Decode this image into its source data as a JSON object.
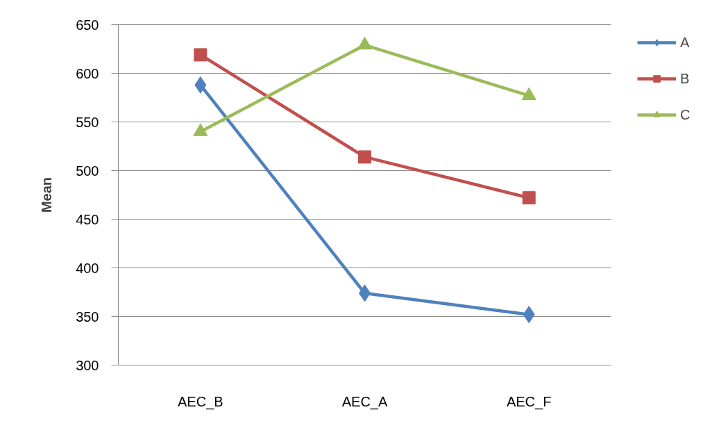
{
  "chart_data": {
    "type": "line",
    "ylabel": "Mean",
    "categories": [
      "AEC_B",
      "AEC_A",
      "AEC_F"
    ],
    "series": [
      {
        "name": "A",
        "color": "#4f81bd",
        "marker": "diamond",
        "values": [
          588,
          374,
          352
        ]
      },
      {
        "name": "B",
        "color": "#c0504d",
        "marker": "square",
        "values": [
          619,
          514,
          472
        ]
      },
      {
        "name": "C",
        "color": "#9bbb59",
        "marker": "triangle",
        "values": [
          540,
          629,
          577
        ]
      }
    ],
    "ylim": [
      300,
      650
    ],
    "yticks": [
      300,
      350,
      400,
      450,
      500,
      550,
      600,
      650
    ],
    "grid": "y",
    "legend": "top right"
  }
}
